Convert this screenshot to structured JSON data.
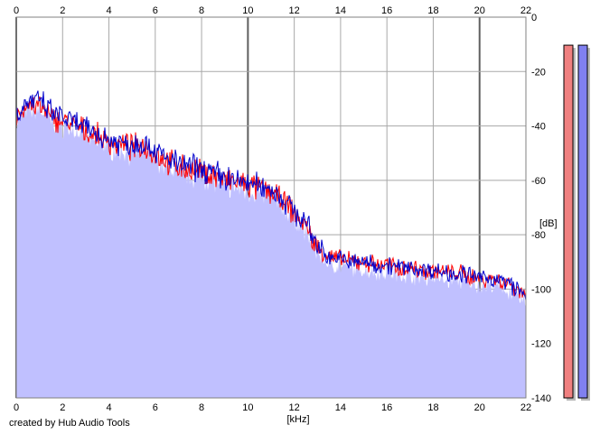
{
  "credit": "created by Hub Audio Tools",
  "chart_data": {
    "type": "area",
    "xlabel": "[kHz]",
    "ylabel": "[dB]",
    "xlim": [
      0,
      22
    ],
    "ylim": [
      -140,
      0
    ],
    "x_ticks": [
      0,
      2,
      4,
      6,
      8,
      10,
      12,
      14,
      16,
      18,
      20,
      22
    ],
    "y_ticks": [
      0,
      -20,
      -40,
      -60,
      -80,
      -100,
      -120,
      -140
    ],
    "grid": true,
    "x_tick_labels_top_and_bottom": true,
    "y_tick_labels_side": "right",
    "fill_color": "#c0c0ff",
    "series": [
      {
        "color": "#ff0000",
        "x": [
          0,
          0.5,
          1,
          1.5,
          2,
          2.5,
          3,
          3.5,
          4,
          4.5,
          5,
          5.5,
          6,
          6.5,
          7,
          7.5,
          8,
          8.5,
          9,
          9.5,
          10,
          10.5,
          11,
          11.5,
          12,
          12.5,
          13,
          13.5,
          14,
          14.5,
          15,
          15.5,
          16,
          16.5,
          17,
          17.5,
          18,
          18.5,
          19,
          19.5,
          20,
          20.5,
          21,
          21.5,
          22
        ],
        "values": [
          -37,
          -32,
          -33,
          -37,
          -38,
          -40,
          -42,
          -44,
          -46,
          -47,
          -48,
          -47,
          -50,
          -53,
          -55,
          -56,
          -57,
          -58,
          -60,
          -61,
          -62,
          -63,
          -64,
          -68,
          -72,
          -77,
          -85,
          -88,
          -89,
          -90,
          -90,
          -91,
          -91,
          -92,
          -92,
          -93,
          -93,
          -94,
          -94,
          -95,
          -96,
          -96,
          -97,
          -99,
          -102
        ]
      },
      {
        "color": "#0000cc",
        "x": [
          0,
          0.5,
          1,
          1.5,
          2,
          2.5,
          3,
          3.5,
          4,
          4.5,
          5,
          5.5,
          6,
          6.5,
          7,
          7.5,
          8,
          8.5,
          9,
          9.5,
          10,
          10.5,
          11,
          11.5,
          12,
          12.5,
          13,
          13.5,
          14,
          14.5,
          15,
          15.5,
          16,
          16.5,
          17,
          17.5,
          18,
          18.5,
          19,
          19.5,
          20,
          20.5,
          21,
          21.5,
          22
        ],
        "values": [
          -36,
          -31,
          -31,
          -35,
          -37,
          -39,
          -41,
          -43,
          -45,
          -46,
          -47,
          -46,
          -49,
          -52,
          -54,
          -55,
          -56,
          -57,
          -59,
          -60,
          -61,
          -62,
          -63,
          -67,
          -71,
          -76,
          -84,
          -88,
          -89,
          -90,
          -90,
          -91,
          -91,
          -92,
          -92,
          -93,
          -93,
          -94,
          -94,
          -95,
          -96,
          -96,
          -97,
          -99,
          -103
        ]
      }
    ],
    "level_meters": [
      {
        "color": "#f08080",
        "value": -5
      },
      {
        "color": "#8080f0",
        "value": -5
      }
    ]
  }
}
